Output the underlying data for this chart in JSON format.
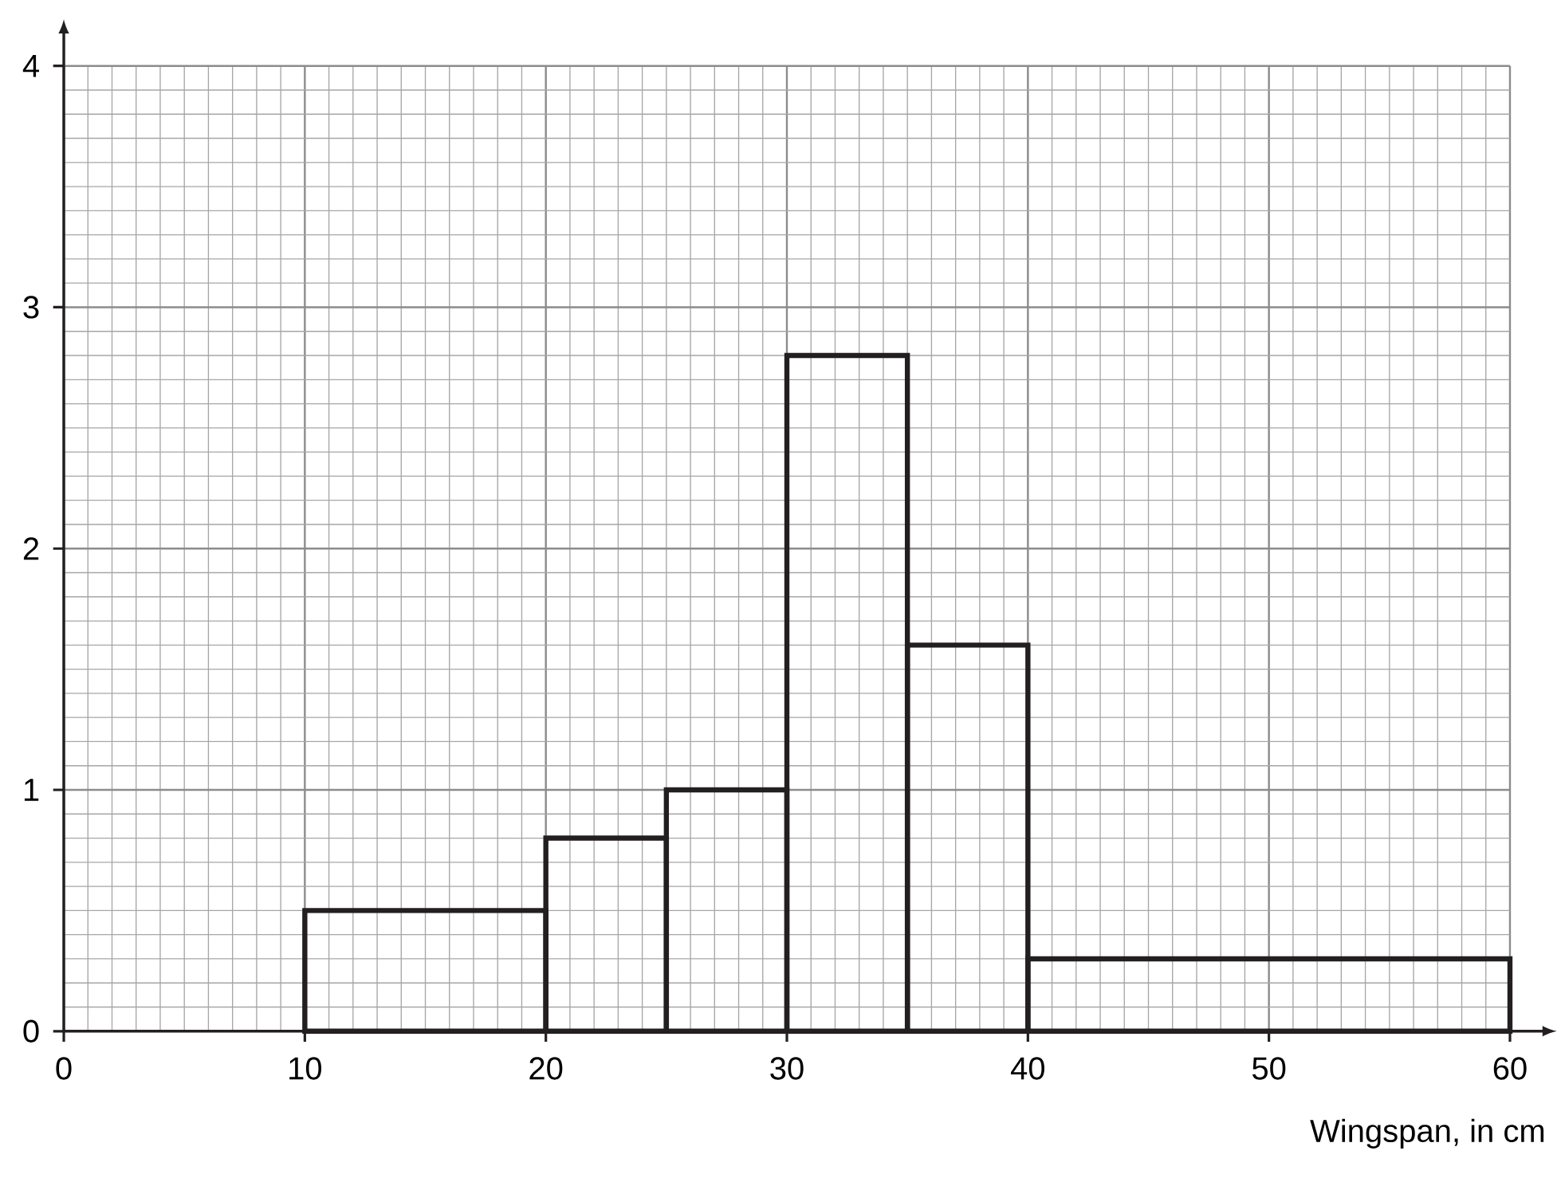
{
  "chart_data": {
    "type": "histogram",
    "xlabel": "Wingspan, in cm",
    "bins": [
      10,
      20,
      25,
      30,
      35,
      40,
      60
    ],
    "values": [
      0.5,
      0.8,
      1.0,
      2.8,
      1.6,
      0.3
    ],
    "color": "#231f20",
    "xlim": [
      0,
      60
    ],
    "ylim": [
      0,
      4
    ],
    "xticks": [
      0,
      10,
      20,
      30,
      40,
      50,
      60
    ],
    "yticks": [
      0,
      1,
      2,
      3,
      4
    ],
    "grid": true
  }
}
